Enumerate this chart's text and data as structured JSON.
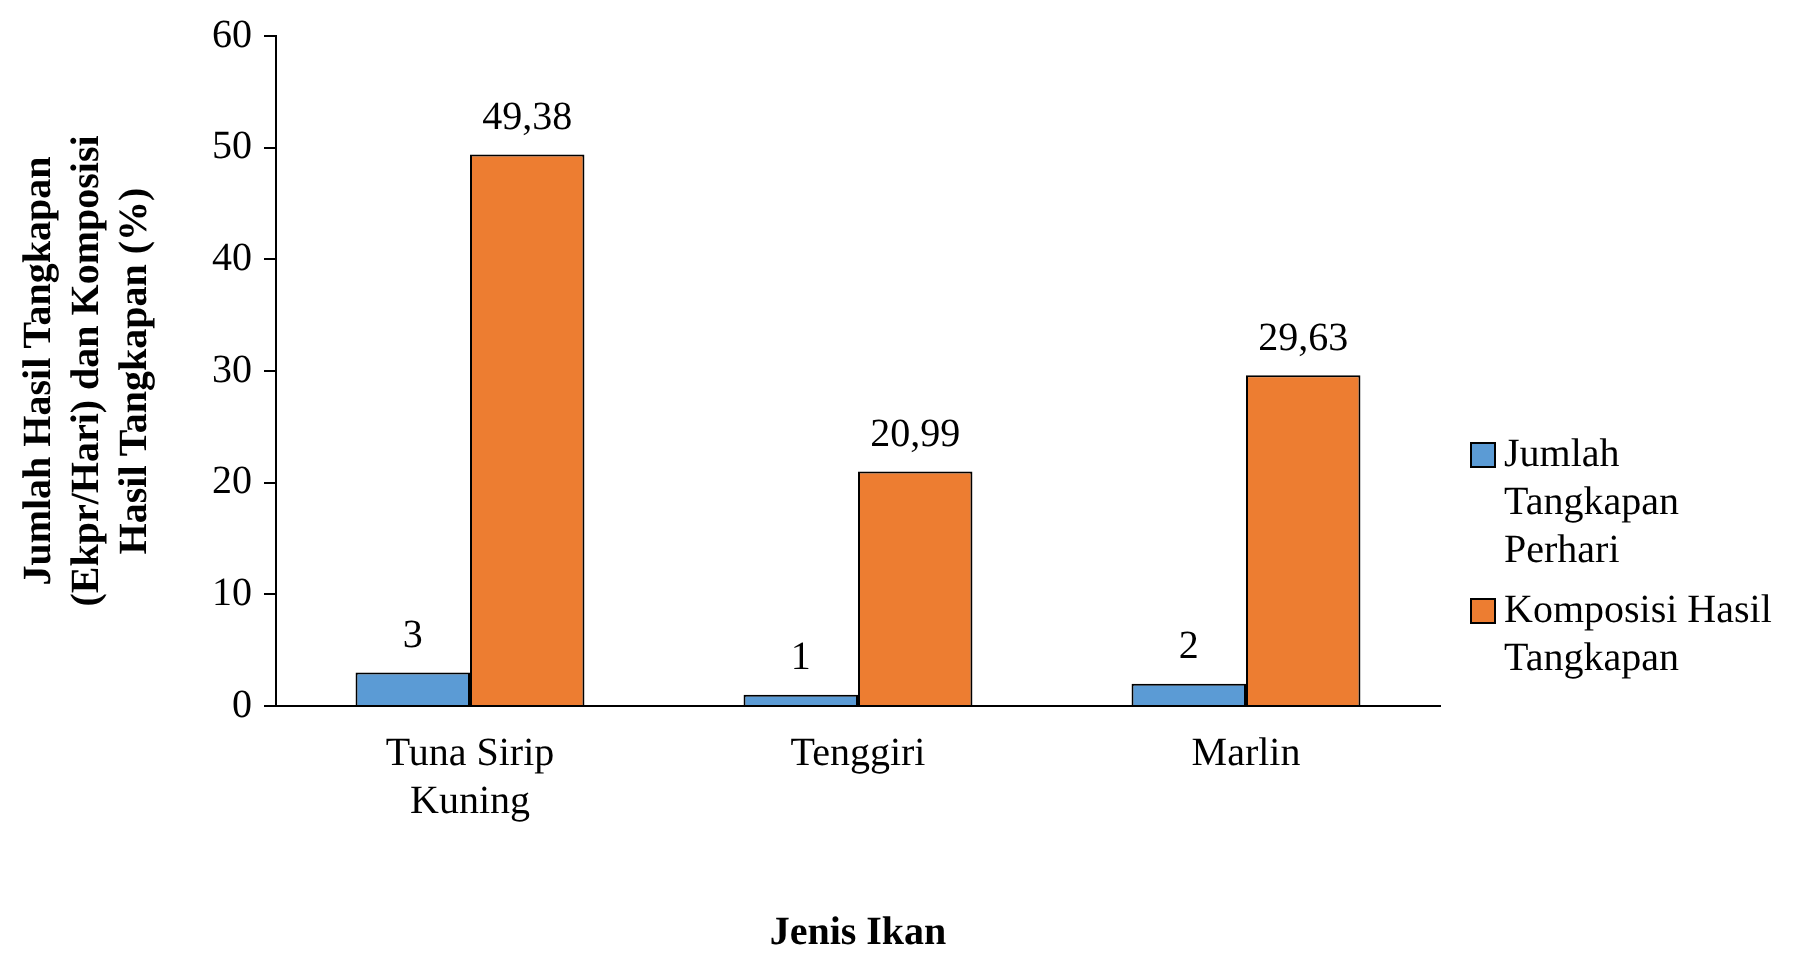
{
  "chart_data": {
    "type": "bar",
    "xlabel": "Jenis Ikan",
    "ylabel": "Jumlah Hasil Tangkapan (Ekpr/Hari) dan Komposisi Hasil Tangkapan (%)",
    "categories": [
      "Tuna Sirip Kuning",
      "Tenggiri",
      "Marlin"
    ],
    "series": [
      {
        "name": "Jumlah Tangkapan Perhari",
        "color": "#5b9bd5",
        "values": [
          3,
          1,
          2
        ],
        "value_labels": [
          "3",
          "1",
          "2"
        ]
      },
      {
        "name": "Komposisi Hasil Tangkapan",
        "color": "#ed7d31",
        "values": [
          49.38,
          20.99,
          29.63
        ],
        "value_labels": [
          "49,38",
          "20,99",
          "29,63"
        ]
      }
    ],
    "ylim": [
      0,
      60
    ],
    "yticks": [
      0,
      10,
      20,
      30,
      40,
      50,
      60
    ],
    "legend": "right"
  }
}
